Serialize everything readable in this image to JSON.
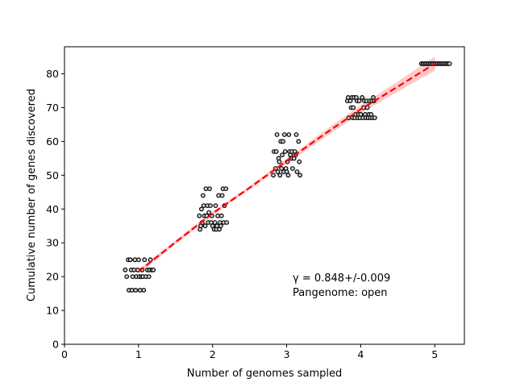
{
  "chart_data": {
    "type": "scatter",
    "xlabel": "Number of genomes sampled",
    "ylabel": "Cumulative number of genes discovered",
    "xlim": [
      0,
      5.4
    ],
    "ylim": [
      0,
      88
    ],
    "xticks": [
      "0",
      "1",
      "2",
      "3",
      "4",
      "5"
    ],
    "yticks": [
      "0",
      "10",
      "20",
      "30",
      "40",
      "50",
      "60",
      "70",
      "80"
    ],
    "grid": false,
    "annotations": [
      "γ = 0.848+/-0.009",
      "Pangenome: open"
    ],
    "points": [
      {
        "x": 0.82,
        "y": 22
      },
      {
        "x": 0.84,
        "y": 20
      },
      {
        "x": 0.86,
        "y": 25
      },
      {
        "x": 0.87,
        "y": 16
      },
      {
        "x": 0.89,
        "y": 25
      },
      {
        "x": 0.9,
        "y": 22
      },
      {
        "x": 0.91,
        "y": 16
      },
      {
        "x": 0.92,
        "y": 20
      },
      {
        "x": 0.94,
        "y": 22
      },
      {
        "x": 0.95,
        "y": 25
      },
      {
        "x": 0.96,
        "y": 16
      },
      {
        "x": 0.97,
        "y": 20
      },
      {
        "x": 0.99,
        "y": 22
      },
      {
        "x": 1.0,
        "y": 25
      },
      {
        "x": 1.01,
        "y": 20
      },
      {
        "x": 1.02,
        "y": 16
      },
      {
        "x": 1.04,
        "y": 20
      },
      {
        "x": 1.05,
        "y": 22
      },
      {
        "x": 1.06,
        "y": 20
      },
      {
        "x": 1.07,
        "y": 16
      },
      {
        "x": 1.08,
        "y": 25
      },
      {
        "x": 1.1,
        "y": 20
      },
      {
        "x": 1.12,
        "y": 22
      },
      {
        "x": 1.14,
        "y": 20
      },
      {
        "x": 1.15,
        "y": 22
      },
      {
        "x": 1.16,
        "y": 25
      },
      {
        "x": 1.18,
        "y": 22
      },
      {
        "x": 1.2,
        "y": 22
      },
      {
        "x": 1.82,
        "y": 38
      },
      {
        "x": 1.83,
        "y": 34
      },
      {
        "x": 1.84,
        "y": 35
      },
      {
        "x": 1.85,
        "y": 40
      },
      {
        "x": 1.86,
        "y": 36
      },
      {
        "x": 1.87,
        "y": 44
      },
      {
        "x": 1.88,
        "y": 41
      },
      {
        "x": 1.89,
        "y": 38
      },
      {
        "x": 1.9,
        "y": 35
      },
      {
        "x": 1.91,
        "y": 46
      },
      {
        "x": 1.92,
        "y": 38
      },
      {
        "x": 1.93,
        "y": 41
      },
      {
        "x": 1.94,
        "y": 36
      },
      {
        "x": 1.95,
        "y": 39
      },
      {
        "x": 1.96,
        "y": 46
      },
      {
        "x": 1.97,
        "y": 41
      },
      {
        "x": 1.98,
        "y": 36
      },
      {
        "x": 1.99,
        "y": 38
      },
      {
        "x": 2.0,
        "y": 35
      },
      {
        "x": 2.02,
        "y": 34
      },
      {
        "x": 2.03,
        "y": 36
      },
      {
        "x": 2.04,
        "y": 41
      },
      {
        "x": 2.05,
        "y": 34
      },
      {
        "x": 2.06,
        "y": 35
      },
      {
        "x": 2.07,
        "y": 38
      },
      {
        "x": 2.08,
        "y": 44
      },
      {
        "x": 2.09,
        "y": 34
      },
      {
        "x": 2.1,
        "y": 36
      },
      {
        "x": 2.11,
        "y": 35
      },
      {
        "x": 2.12,
        "y": 38
      },
      {
        "x": 2.13,
        "y": 44
      },
      {
        "x": 2.14,
        "y": 46
      },
      {
        "x": 2.15,
        "y": 36
      },
      {
        "x": 2.16,
        "y": 41
      },
      {
        "x": 2.18,
        "y": 46
      },
      {
        "x": 2.19,
        "y": 36
      },
      {
        "x": 2.82,
        "y": 50
      },
      {
        "x": 2.83,
        "y": 57
      },
      {
        "x": 2.85,
        "y": 52
      },
      {
        "x": 2.86,
        "y": 57
      },
      {
        "x": 2.87,
        "y": 62
      },
      {
        "x": 2.88,
        "y": 51
      },
      {
        "x": 2.89,
        "y": 55
      },
      {
        "x": 2.9,
        "y": 54
      },
      {
        "x": 2.91,
        "y": 50
      },
      {
        "x": 2.92,
        "y": 60
      },
      {
        "x": 2.93,
        "y": 52
      },
      {
        "x": 2.94,
        "y": 56
      },
      {
        "x": 2.95,
        "y": 60
      },
      {
        "x": 2.96,
        "y": 51
      },
      {
        "x": 2.97,
        "y": 62
      },
      {
        "x": 2.98,
        "y": 57
      },
      {
        "x": 2.99,
        "y": 52
      },
      {
        "x": 3.0,
        "y": 51
      },
      {
        "x": 3.01,
        "y": 54
      },
      {
        "x": 3.02,
        "y": 50
      },
      {
        "x": 3.03,
        "y": 62
      },
      {
        "x": 3.04,
        "y": 57
      },
      {
        "x": 3.05,
        "y": 56
      },
      {
        "x": 3.06,
        "y": 55
      },
      {
        "x": 3.07,
        "y": 57
      },
      {
        "x": 3.08,
        "y": 52
      },
      {
        "x": 3.1,
        "y": 55
      },
      {
        "x": 3.11,
        "y": 57
      },
      {
        "x": 3.12,
        "y": 56
      },
      {
        "x": 3.13,
        "y": 62
      },
      {
        "x": 3.14,
        "y": 51
      },
      {
        "x": 3.16,
        "y": 60
      },
      {
        "x": 3.17,
        "y": 54
      },
      {
        "x": 3.18,
        "y": 50
      },
      {
        "x": 3.82,
        "y": 72
      },
      {
        "x": 3.83,
        "y": 73
      },
      {
        "x": 3.84,
        "y": 67
      },
      {
        "x": 3.86,
        "y": 72
      },
      {
        "x": 3.87,
        "y": 70
      },
      {
        "x": 3.88,
        "y": 73
      },
      {
        "x": 3.89,
        "y": 67
      },
      {
        "x": 3.9,
        "y": 70
      },
      {
        "x": 3.91,
        "y": 73
      },
      {
        "x": 3.92,
        "y": 67
      },
      {
        "x": 3.93,
        "y": 68
      },
      {
        "x": 3.94,
        "y": 73
      },
      {
        "x": 3.95,
        "y": 72
      },
      {
        "x": 3.96,
        "y": 67
      },
      {
        "x": 3.97,
        "y": 68
      },
      {
        "x": 3.98,
        "y": 72
      },
      {
        "x": 3.99,
        "y": 67
      },
      {
        "x": 4.0,
        "y": 68
      },
      {
        "x": 4.02,
        "y": 73
      },
      {
        "x": 4.03,
        "y": 67
      },
      {
        "x": 4.04,
        "y": 70
      },
      {
        "x": 4.05,
        "y": 72
      },
      {
        "x": 4.06,
        "y": 68
      },
      {
        "x": 4.07,
        "y": 67
      },
      {
        "x": 4.08,
        "y": 72
      },
      {
        "x": 4.09,
        "y": 70
      },
      {
        "x": 4.1,
        "y": 67
      },
      {
        "x": 4.11,
        "y": 68
      },
      {
        "x": 4.12,
        "y": 72
      },
      {
        "x": 4.13,
        "y": 67
      },
      {
        "x": 4.14,
        "y": 68
      },
      {
        "x": 4.15,
        "y": 72
      },
      {
        "x": 4.16,
        "y": 67
      },
      {
        "x": 4.17,
        "y": 73
      },
      {
        "x": 4.18,
        "y": 72
      },
      {
        "x": 4.19,
        "y": 67
      },
      {
        "x": 4.82,
        "y": 83
      },
      {
        "x": 4.84,
        "y": 83
      },
      {
        "x": 4.86,
        "y": 83
      },
      {
        "x": 4.88,
        "y": 83
      },
      {
        "x": 4.9,
        "y": 83
      },
      {
        "x": 4.92,
        "y": 83
      },
      {
        "x": 4.94,
        "y": 83
      },
      {
        "x": 4.96,
        "y": 83
      },
      {
        "x": 4.98,
        "y": 83
      },
      {
        "x": 5.0,
        "y": 83
      },
      {
        "x": 5.02,
        "y": 83
      },
      {
        "x": 5.04,
        "y": 83
      },
      {
        "x": 5.06,
        "y": 83
      },
      {
        "x": 5.08,
        "y": 83
      },
      {
        "x": 5.1,
        "y": 83
      },
      {
        "x": 5.12,
        "y": 83
      },
      {
        "x": 5.14,
        "y": 83
      },
      {
        "x": 5.16,
        "y": 83
      },
      {
        "x": 5.18,
        "y": 83
      },
      {
        "x": 5.2,
        "y": 83
      }
    ],
    "fit": {
      "x": [
        1.0,
        1.5,
        2.0,
        2.5,
        3.0,
        3.5,
        4.0,
        4.5,
        5.0
      ],
      "y": [
        21.5,
        30.2,
        38.7,
        46.3,
        54.2,
        62.0,
        69.5,
        76.2,
        83.0
      ],
      "lower": [
        20.8,
        29.6,
        38.1,
        45.8,
        53.5,
        61.0,
        68.3,
        74.7,
        80.9
      ],
      "upper": [
        22.2,
        30.8,
        39.3,
        46.8,
        54.9,
        63.0,
        70.7,
        77.7,
        85.1
      ],
      "line_color": "#ff0000",
      "band_color": "#ffb3b3"
    }
  }
}
